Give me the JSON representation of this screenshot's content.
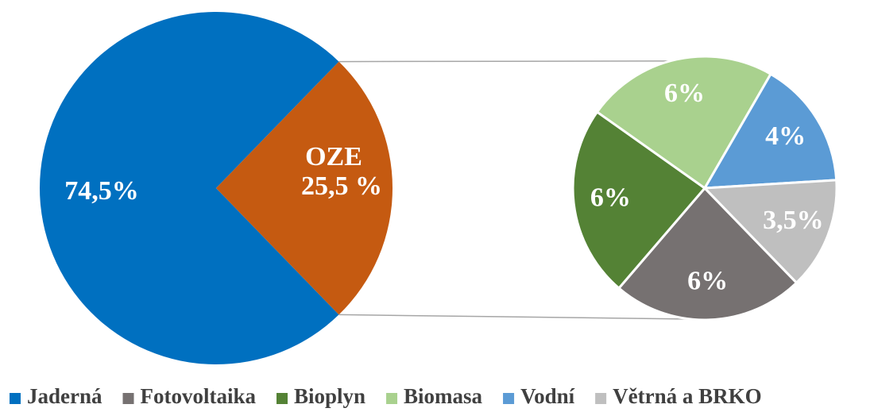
{
  "chart_data": {
    "type": "pie-of-pie",
    "categories": [
      "Jaderná",
      "Fotovoltaika",
      "Bioplyn",
      "Biomasa",
      "Vodní",
      "Větrná a BRKO"
    ],
    "values": [
      74.5,
      6,
      6,
      6,
      4,
      3.5
    ],
    "value_labels": [
      "74,5%",
      "6%",
      "6%",
      "6%",
      "4%",
      "3,5%"
    ],
    "colors": [
      "#0070c0",
      "#767171",
      "#548235",
      "#a9d18e",
      "#5b9bd5",
      "#bfbfbf"
    ],
    "other_label": "OZE",
    "other_value": 25.5,
    "other_value_label": "25,5 %",
    "other_color": "#c55a11",
    "legend": "bottom"
  }
}
